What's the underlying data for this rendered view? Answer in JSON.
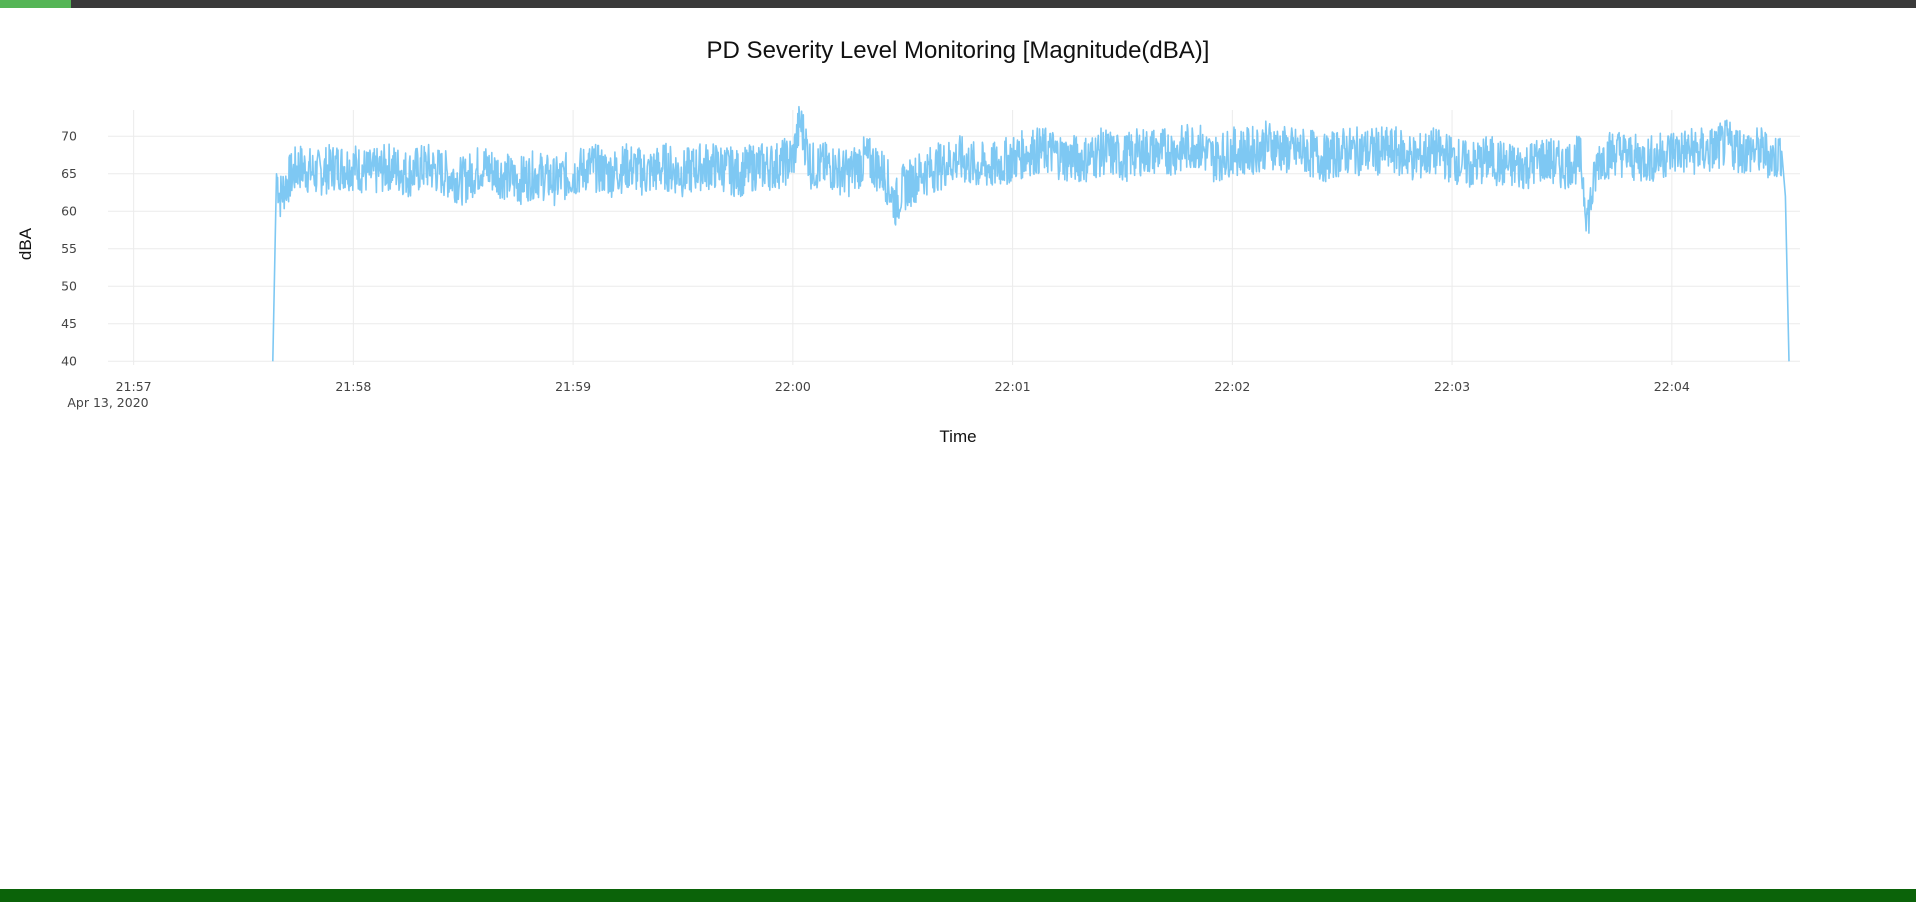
{
  "page": {
    "accent_color": "#55b556",
    "topbar_color": "#3a3a3a",
    "footer_color": "#0b6309",
    "progress_fraction": 0.037
  },
  "chart_data": {
    "type": "line",
    "title": "PD Severity Level Monitoring [Magnitude(dBA)]",
    "xlabel": "Time",
    "ylabel": "dBA",
    "x_date_label": "Apr 13, 2020",
    "x_ticks": [
      "21:57",
      "21:58",
      "21:59",
      "22:00",
      "22:01",
      "22:02",
      "22:03",
      "22:04"
    ],
    "y_ticks": [
      40,
      45,
      50,
      55,
      60,
      65,
      70
    ],
    "xlim": [
      "2020-04-13 21:56:53",
      "2020-04-13 22:04:35"
    ],
    "ylim": [
      39.5,
      73.5
    ],
    "grid": true,
    "series": [
      {
        "color": "#7ec8f3",
        "x": [
          "2020-04-13 21:57:38",
          "2020-04-13 21:57:39",
          "2020-04-13 21:57:40",
          "2020-04-13 21:57:42",
          "2020-04-13 21:57:45",
          "2020-04-13 21:57:50",
          "2020-04-13 21:57:55",
          "2020-04-13 21:58:00",
          "2020-04-13 21:58:05",
          "2020-04-13 21:58:10",
          "2020-04-13 21:58:15",
          "2020-04-13 21:58:20",
          "2020-04-13 21:58:25",
          "2020-04-13 21:58:30",
          "2020-04-13 21:58:35",
          "2020-04-13 21:58:40",
          "2020-04-13 21:58:45",
          "2020-04-13 21:58:50",
          "2020-04-13 21:58:55",
          "2020-04-13 21:59:00",
          "2020-04-13 21:59:05",
          "2020-04-13 21:59:10",
          "2020-04-13 21:59:15",
          "2020-04-13 21:59:20",
          "2020-04-13 21:59:25",
          "2020-04-13 21:59:30",
          "2020-04-13 21:59:35",
          "2020-04-13 21:59:40",
          "2020-04-13 21:59:45",
          "2020-04-13 21:59:50",
          "2020-04-13 21:59:55",
          "2020-04-13 22:00:00",
          "2020-04-13 22:00:02",
          "2020-04-13 22:00:05",
          "2020-04-13 22:00:10",
          "2020-04-13 22:00:15",
          "2020-04-13 22:00:20",
          "2020-04-13 22:00:25",
          "2020-04-13 22:00:28",
          "2020-04-13 22:00:30",
          "2020-04-13 22:00:35",
          "2020-04-13 22:00:40",
          "2020-04-13 22:00:45",
          "2020-04-13 22:00:50",
          "2020-04-13 22:00:55",
          "2020-04-13 22:01:00",
          "2020-04-13 22:01:05",
          "2020-04-13 22:01:10",
          "2020-04-13 22:01:15",
          "2020-04-13 22:01:20",
          "2020-04-13 22:01:25",
          "2020-04-13 22:01:30",
          "2020-04-13 22:01:35",
          "2020-04-13 22:01:40",
          "2020-04-13 22:01:45",
          "2020-04-13 22:01:50",
          "2020-04-13 22:01:55",
          "2020-04-13 22:02:00",
          "2020-04-13 22:02:05",
          "2020-04-13 22:02:10",
          "2020-04-13 22:02:15",
          "2020-04-13 22:02:20",
          "2020-04-13 22:02:25",
          "2020-04-13 22:02:30",
          "2020-04-13 22:02:35",
          "2020-04-13 22:02:40",
          "2020-04-13 22:02:45",
          "2020-04-13 22:02:50",
          "2020-04-13 22:02:55",
          "2020-04-13 22:03:00",
          "2020-04-13 22:03:05",
          "2020-04-13 22:03:10",
          "2020-04-13 22:03:15",
          "2020-04-13 22:03:20",
          "2020-04-13 22:03:25",
          "2020-04-13 22:03:30",
          "2020-04-13 22:03:35",
          "2020-04-13 22:03:37",
          "2020-04-13 22:03:40",
          "2020-04-13 22:03:45",
          "2020-04-13 22:03:50",
          "2020-04-13 22:03:55",
          "2020-04-13 22:04:00",
          "2020-04-13 22:04:05",
          "2020-04-13 22:04:10",
          "2020-04-13 22:04:15",
          "2020-04-13 22:04:20",
          "2020-04-13 22:04:25",
          "2020-04-13 22:04:28",
          "2020-04-13 22:04:30",
          "2020-04-13 22:04:31",
          "2020-04-13 22:04:32"
        ],
        "y": [
          40,
          65,
          62,
          64,
          66,
          65,
          66,
          66,
          65,
          66,
          65,
          66,
          65,
          64,
          66,
          65,
          64,
          65,
          64,
          65,
          66,
          65,
          66,
          65,
          66,
          65,
          66,
          66,
          65,
          66,
          66,
          67,
          72,
          66,
          66,
          65,
          67,
          65,
          61,
          63,
          65,
          66,
          67,
          66,
          66,
          67,
          68,
          68,
          67,
          67,
          68,
          67,
          68,
          68,
          68,
          69,
          67,
          68,
          68,
          69,
          68,
          68,
          67,
          68,
          68,
          68,
          68,
          67,
          68,
          67,
          66,
          67,
          66,
          66,
          67,
          66,
          67,
          59,
          67,
          68,
          67,
          67,
          68,
          68,
          68,
          69,
          68,
          68,
          67,
          68,
          62,
          40
        ]
      }
    ]
  }
}
